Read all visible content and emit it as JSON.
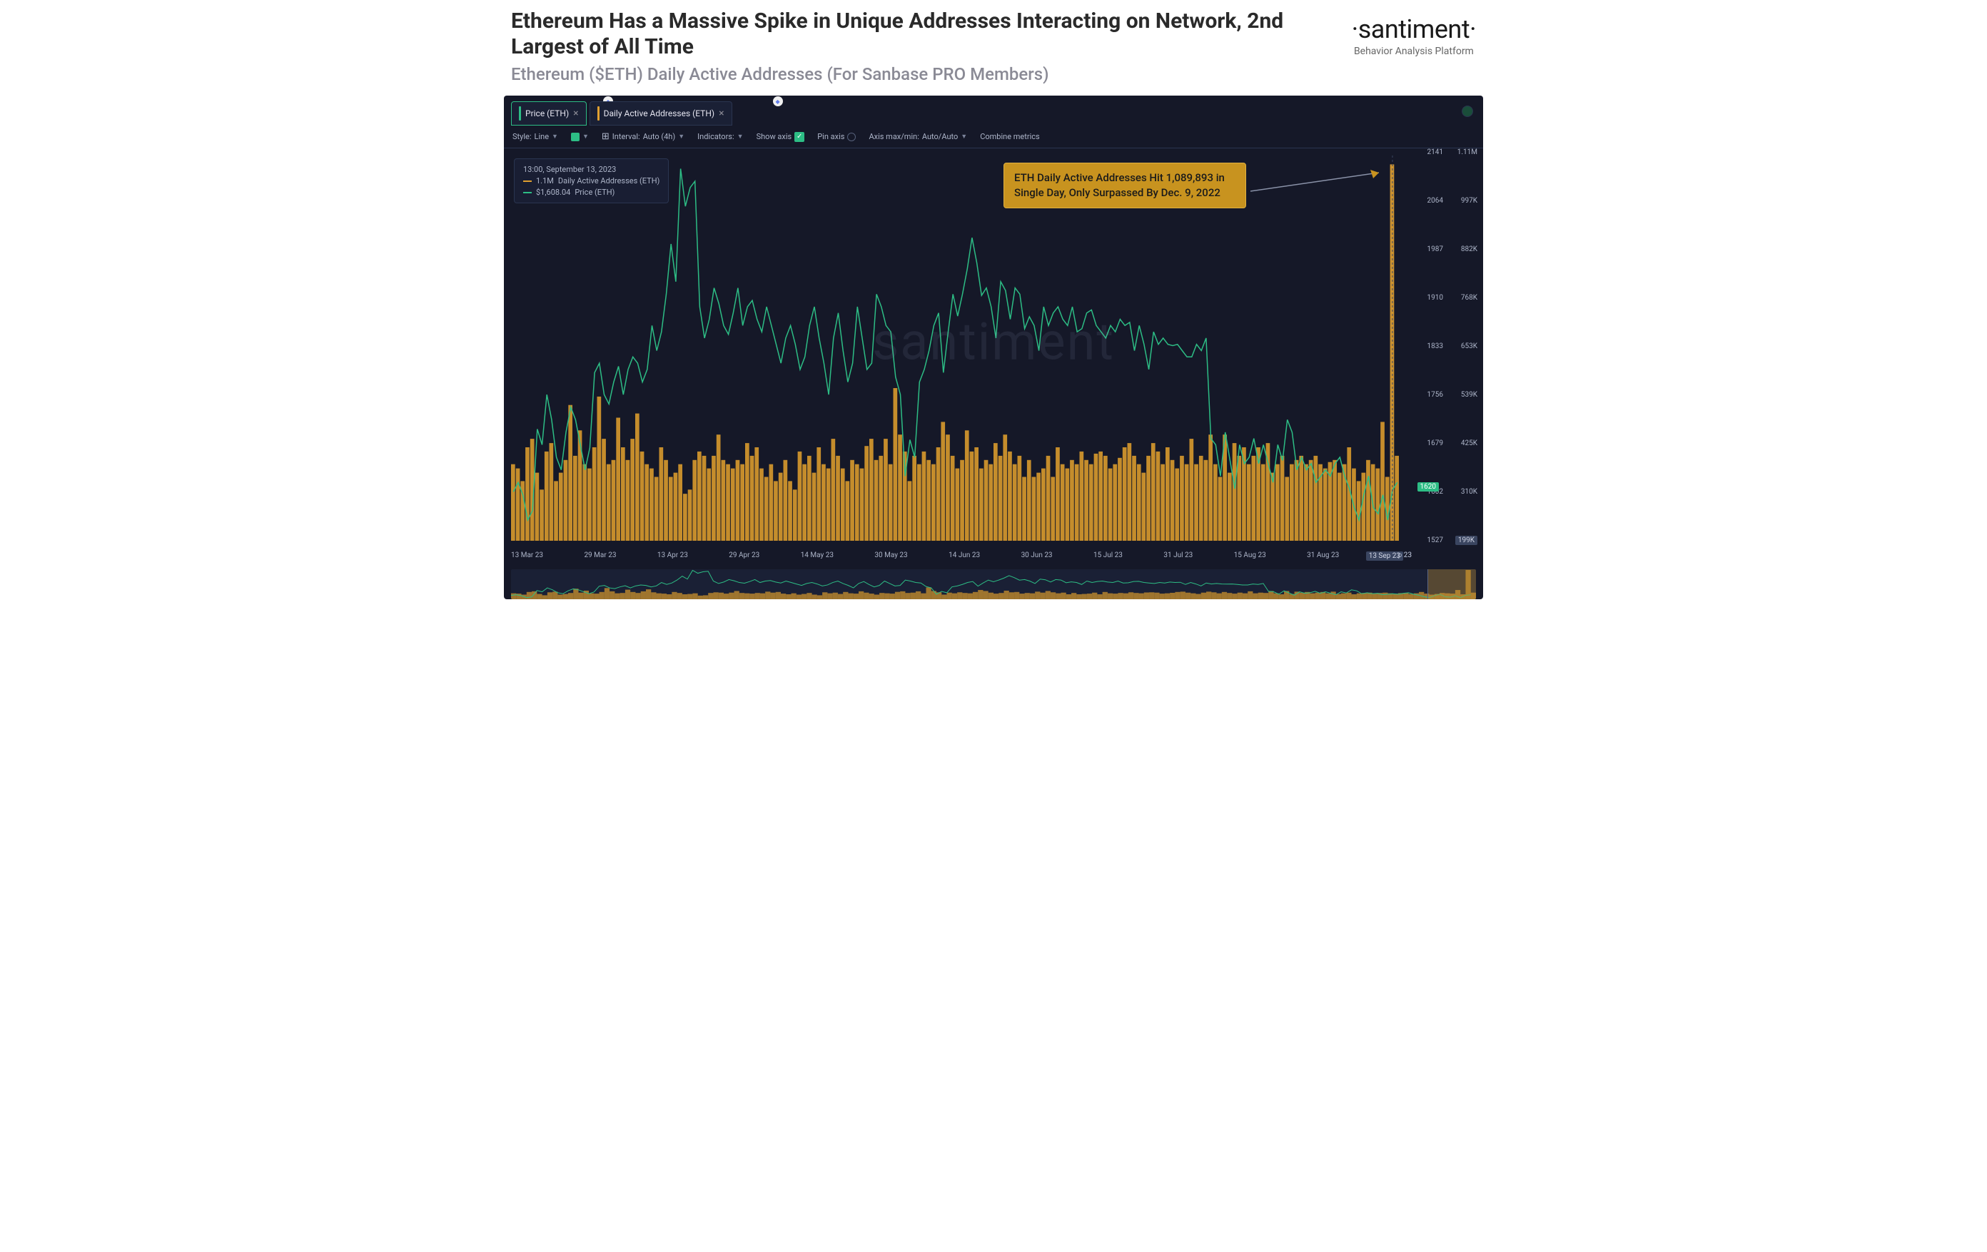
{
  "header": {
    "title": "Ethereum Has a Massive Spike in Unique Addresses Interacting on Network, 2nd Largest of All Time",
    "subtitle": "Ethereum ($ETH) Daily Active Addresses (For Sanbase PRO Members)"
  },
  "brand": {
    "logo": "·santiment·",
    "tagline": "Behavior Analysis Platform"
  },
  "tabs": [
    {
      "label": "Price (ETH)",
      "accent_color": "#2dbd85",
      "active": true
    },
    {
      "label": "Daily Active Addresses (ETH)",
      "accent_color": "#e0a030",
      "active": false
    }
  ],
  "toolbar": {
    "style_label": "Style:",
    "style_value": "Line",
    "interval_label": "Interval:",
    "interval_value": "Auto (4h)",
    "indicators_label": "Indicators:",
    "show_axis_label": "Show axis",
    "pin_axis_label": "Pin axis",
    "axis_minmax_label": "Axis max/min:",
    "axis_minmax_value": "Auto/Auto",
    "combine_label": "Combine metrics"
  },
  "info_box": {
    "timestamp": "13:00, September 13, 2023",
    "row1_value": "1.1M",
    "row1_label": "Daily Active Addresses (ETH)",
    "row1_color": "#e0a030",
    "row2_value": "$1,608.04",
    "row2_label": "Price (ETH)",
    "row2_color": "#2dbd85"
  },
  "annotation_text": "ETH Daily Active Addresses Hit 1,089,893 in Single Day, Only Surpassed By Dec. 9, 2022",
  "watermark_text": "santiment",
  "chart": {
    "type": "combo-line-bar",
    "background_color": "#151828",
    "price_line_color": "#2dbd85",
    "bar_color": "#d89a2c",
    "spike_bar_color": "#e0a030",
    "grid_color": "#25304a",
    "price_ylim": [
      1527,
      2141
    ],
    "addresses_ylim": [
      199000,
      1110000
    ],
    "y_left_ticks": [
      {
        "v": 2141,
        "pct": 0
      },
      {
        "v": 2064,
        "pct": 12.5
      },
      {
        "v": 1987,
        "pct": 25
      },
      {
        "v": 1910,
        "pct": 37.5
      },
      {
        "v": 1833,
        "pct": 50
      },
      {
        "v": 1756,
        "pct": 62.5
      },
      {
        "v": 1679,
        "pct": 75
      },
      {
        "v": 1602,
        "pct": 87.5
      },
      {
        "v": 1527,
        "pct": 100
      }
    ],
    "y_right_ticks": [
      {
        "v": "1.11M",
        "pct": 0
      },
      {
        "v": "997K",
        "pct": 12.5
      },
      {
        "v": "882K",
        "pct": 25
      },
      {
        "v": "768K",
        "pct": 37.5
      },
      {
        "v": "653K",
        "pct": 50
      },
      {
        "v": "539K",
        "pct": 62.5
      },
      {
        "v": "425K",
        "pct": 75
      },
      {
        "v": "310K",
        "pct": 87.5
      },
      {
        "v": "199K",
        "pct": 100
      }
    ],
    "x_ticks": [
      "13 Mar 23",
      "29 Mar 23",
      "13 Apr 23",
      "29 Apr 23",
      "14 May 23",
      "30 May 23",
      "14 Jun 23",
      "30 Jun 23",
      "15 Jul 23",
      "31 Jul 23",
      "15 Aug 23",
      "31 Aug 23",
      "13 Sep 23"
    ],
    "current_price_label": "1620",
    "current_date_label": "13 Sep 23",
    "current_date_suffix": "p 23",
    "current_addr_badge": "199K",
    "x_count": 186,
    "price_series": [
      1605,
      1620,
      1600,
      1560,
      1575,
      1705,
      1680,
      1760,
      1720,
      1660,
      1640,
      1700,
      1740,
      1720,
      1680,
      1640,
      1675,
      1795,
      1810,
      1760,
      1745,
      1780,
      1805,
      1760,
      1800,
      1820,
      1810,
      1780,
      1800,
      1870,
      1830,
      1860,
      1920,
      2000,
      1940,
      2120,
      2060,
      2090,
      2100,
      1900,
      1850,
      1880,
      1930,
      1905,
      1870,
      1856,
      1890,
      1930,
      1870,
      1900,
      1910,
      1880,
      1860,
      1900,
      1870,
      1840,
      1810,
      1850,
      1870,
      1840,
      1800,
      1820,
      1870,
      1900,
      1850,
      1810,
      1760,
      1850,
      1890,
      1830,
      1780,
      1810,
      1900,
      1850,
      1800,
      1810,
      1920,
      1900,
      1870,
      1860,
      1788,
      1760,
      1630,
      1688,
      1660,
      1780,
      1800,
      1830,
      1870,
      1890,
      1795,
      1860,
      1920,
      1885,
      1920,
      1960,
      2010,
      1970,
      1918,
      1930,
      1900,
      1850,
      1940,
      1926,
      1880,
      1930,
      1920,
      1865,
      1884,
      1870,
      1830,
      1900,
      1870,
      1890,
      1900,
      1880,
      1870,
      1900,
      1860,
      1865,
      1890,
      1895,
      1870,
      1860,
      1850,
      1870,
      1860,
      1880,
      1870,
      1875,
      1830,
      1870,
      1840,
      1800,
      1860,
      1840,
      1850,
      1840,
      1838,
      1840,
      1830,
      1820,
      1820,
      1840,
      1830,
      1850,
      1690,
      1680,
      1630,
      1700,
      1655,
      1610,
      1680,
      1650,
      1660,
      1690,
      1650,
      1680,
      1650,
      1620,
      1680,
      1655,
      1720,
      1700,
      1640,
      1660,
      1640,
      1650,
      1620,
      1630,
      1640,
      1630,
      1650,
      1660,
      1630,
      1610,
      1580,
      1560,
      1600,
      1630,
      1580,
      1570,
      1600,
      1560,
      1608,
      1620
    ],
    "address_series": [
      380,
      370,
      340,
      420,
      440,
      360,
      320,
      410,
      430,
      340,
      360,
      390,
      520,
      400,
      460,
      380,
      370,
      420,
      540,
      440,
      380,
      390,
      490,
      420,
      390,
      440,
      500,
      410,
      380,
      370,
      350,
      420,
      390,
      350,
      360,
      380,
      310,
      320,
      390,
      410,
      400,
      370,
      400,
      450,
      390,
      380,
      370,
      390,
      380,
      430,
      400,
      420,
      370,
      350,
      380,
      340,
      360,
      390,
      340,
      320,
      410,
      380,
      400,
      360,
      420,
      380,
      370,
      440,
      400,
      370,
      340,
      390,
      380,
      370,
      423,
      440,
      390,
      400,
      440,
      380,
      560,
      450,
      410,
      340,
      400,
      380,
      410,
      390,
      380,
      420,
      480,
      450,
      400,
      370,
      390,
      460,
      410,
      420,
      370,
      390,
      380,
      430,
      400,
      450,
      410,
      380,
      400,
      350,
      390,
      350,
      360,
      370,
      400,
      350,
      420,
      380,
      370,
      390,
      380,
      410,
      390,
      380,
      405,
      410,
      400,
      370,
      380,
      395,
      420,
      430,
      400,
      380,
      360,
      400,
      430,
      410,
      380,
      420,
      390,
      370,
      400,
      380,
      440,
      380,
      400,
      390,
      450,
      380,
      350,
      450,
      360,
      430,
      400,
      420,
      380,
      400,
      420,
      380,
      430,
      360,
      380,
      400,
      350,
      380,
      390,
      400,
      380,
      390,
      400,
      380,
      370,
      385,
      390,
      360,
      380,
      420,
      370,
      340,
      360,
      390,
      380,
      370,
      480,
      350,
      1089,
      400
    ]
  }
}
